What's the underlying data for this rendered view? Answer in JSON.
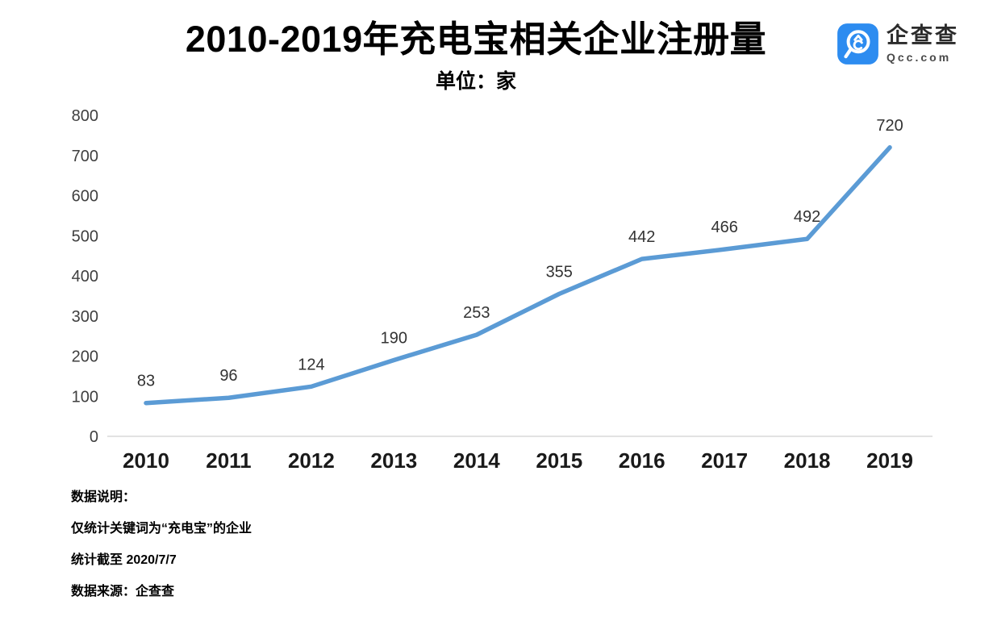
{
  "header": {
    "title": "2010-2019年充电宝相关企业注册量",
    "subtitle": "单位：家",
    "logo": {
      "brand_cn": "企查查",
      "brand_en": "Qcc.com",
      "brand_color": "#2D8CF0"
    }
  },
  "chart_data": {
    "type": "line",
    "title": "2010-2019年充电宝相关企业注册量",
    "unit_label": "单位：家",
    "categories": [
      "2010",
      "2011",
      "2012",
      "2013",
      "2014",
      "2015",
      "2016",
      "2017",
      "2018",
      "2019"
    ],
    "values": [
      83,
      96,
      124,
      190,
      253,
      355,
      442,
      466,
      492,
      720
    ],
    "ylim": [
      0,
      800
    ],
    "yticks": [
      0,
      100,
      200,
      300,
      400,
      500,
      600,
      700,
      800
    ],
    "grid": false,
    "legend": "none",
    "data_labels": true,
    "line_color": "#5B9BD5",
    "axis_line_color": "#d9d9d9",
    "ytick_color": "#3f3f3f",
    "xtick_color": "#1a1a1a",
    "data_label_color": "#333333"
  },
  "notes": {
    "heading": "数据说明：",
    "scope": "仅统计关键词为“充电宝”的企业",
    "cutoff": "统计截至 2020/7/7",
    "source": "数据来源：企查查"
  }
}
